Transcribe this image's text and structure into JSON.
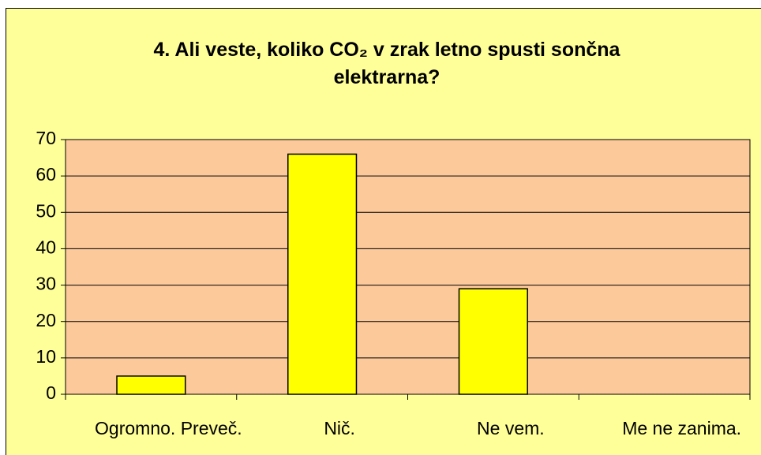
{
  "chart_data": {
    "type": "bar",
    "title": "4. Ali veste, koliko CO₂ v zrak letno spusti sončna elektrarna?",
    "categories": [
      "Ogromno. Preveč.",
      "Nič.",
      "Ne vem.",
      "Me ne zanima."
    ],
    "values": [
      5,
      66,
      29,
      0
    ],
    "color": "#ffff00",
    "ylim": [
      0,
      70
    ],
    "yticks": [
      0,
      10,
      20,
      30,
      40,
      50,
      60,
      70
    ],
    "grid": true
  }
}
